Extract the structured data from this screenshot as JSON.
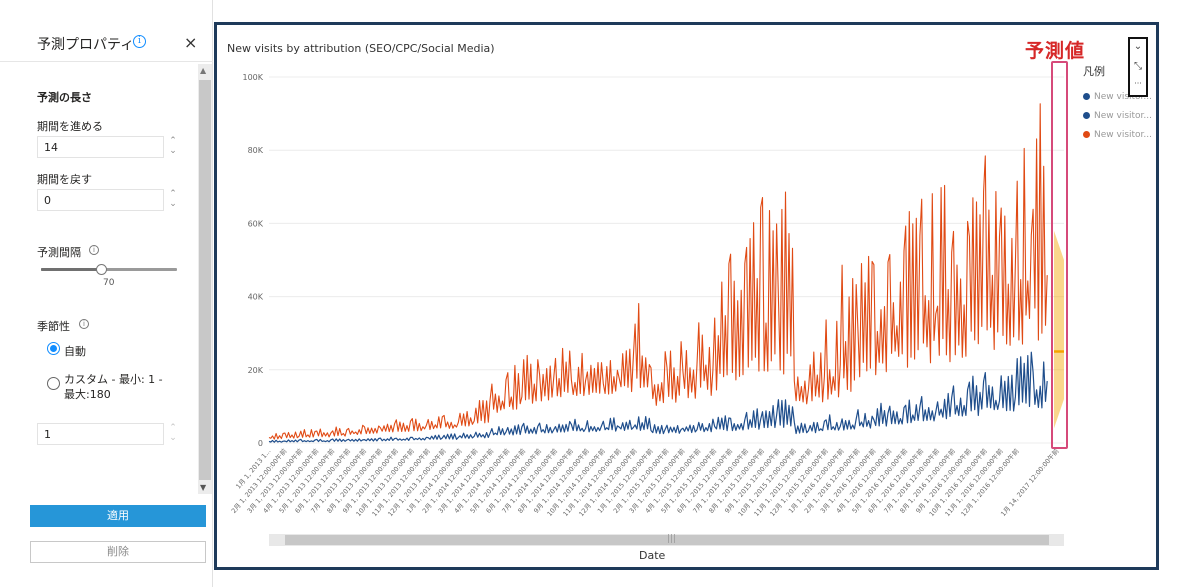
{
  "left_pane": {
    "title": "予測プロパティ",
    "info_icon": "info-icon",
    "close_icon": "close-icon",
    "close_glyph": "×",
    "section_forecast_length": "予測の長さ",
    "forward_label": "期間を進める",
    "forward_value": "14",
    "backward_label": "期間を戻す",
    "backward_value": "0",
    "confidence_label": "予測間隔",
    "confidence_value": "70",
    "confidence_fraction": 0.37,
    "seasonality_label": "季節性",
    "radio_auto": "自動",
    "radio_custom": "カスタム - 最小: 1 - 最大:180",
    "seasonality_value": "1",
    "apply_button": "適用",
    "delete_button": "削除"
  },
  "chart_panel": {
    "forecast_annotation": "予測値",
    "legend_title": "凡例",
    "legend": [
      {
        "label": "New visitor...",
        "color": "#1f4e8c"
      },
      {
        "label": "New visitor...",
        "color": "#1f4e8c"
      },
      {
        "label": "New visitor...",
        "color": "#e04a14"
      }
    ],
    "icons": [
      "chevron-down-icon",
      "collapse-icon",
      "more-icon"
    ],
    "icon_glyphs": [
      "⌄",
      "⤡",
      "···"
    ],
    "scroll_grip": "|||"
  },
  "chart_data": {
    "type": "line",
    "title": "New visits by attribution (SEO/CPC/Social Media)",
    "xlabel": "Date",
    "ylabel": "",
    "ylim": [
      0,
      100000
    ],
    "yticks": [
      "0",
      "20K",
      "40K",
      "60K",
      "80K",
      "100K"
    ],
    "x_tick_labels": [
      "1月 1, 2013 1...",
      "2月 1, 2013 12:00:00午前",
      "3月 1, 2013 12:00:00午前",
      "4月 1, 2013 12:00:00午前",
      "5月 1, 2013 12:00:00午前",
      "6月 1, 2013 12:00:00午前",
      "7月 1, 2013 12:00:00午前",
      "8月 1, 2013 12:00:00午前",
      "9月 1, 2013 12:00:00午前",
      "10月 1, 2013 12:00:00午前",
      "11月 1, 2013 12:00:00午前",
      "12月 1, 2013 12:00:00午前",
      "1月 1, 2014 12:00:00午前",
      "2月 1, 2014 12:00:00午前",
      "3月 1, 2014 12:00:00午前",
      "4月 1, 2014 12:00:00午前",
      "5月 1, 2014 12:00:00午前",
      "6月 1, 2014 12:00:00午前",
      "7月 1, 2014 12:00:00午前",
      "8月 1, 2014 12:00:00午前",
      "9月 1, 2014 12:00:00午前",
      "10月 1, 2014 12:00:00午前",
      "11月 1, 2014 12:00:00午前",
      "12月 1, 2014 12:00:00午前",
      "1月 1, 2015 12:00:00午前",
      "2月 1, 2015 12:00:00午前",
      "3月 1, 2015 12:00:00午前",
      "4月 1, 2015 12:00:00午前",
      "5月 1, 2015 12:00:00午前",
      "6月 1, 2015 12:00:00午前",
      "7月 1, 2015 12:00:00午前",
      "8月 1, 2015 12:00:00午前",
      "9月 1, 2015 12:00:00午前",
      "10月 1, 2015 12:00:00午前",
      "11月 1, 2015 12:00:00午前",
      "12月 1, 2015 12:00:00午前",
      "1月 1, 2016 12:00:00午前",
      "2月 1, 2016 12:00:00午前",
      "3月 1, 2016 12:00:00午前",
      "4月 1, 2016 12:00:00午前",
      "5月 1, 2016 12:00:00午前",
      "6月 1, 2016 12:00:00午前",
      "7月 1, 2016 12:00:00午前",
      "8月 1, 2016 12:00:00午前",
      "9月 1, 2016 12:00:00午前",
      "10月 1, 2016 12:00:00午前",
      "11月 1, 2016 12:00:00午前",
      "12月 1, 2016 12:00:00午前",
      "1月 14, 2017 12:00:00午前"
    ],
    "series": [
      {
        "color": "#e04a14",
        "style": "daily-spiky",
        "monthly_low": [
          1000,
          1200,
          1400,
          1600,
          1800,
          2200,
          2500,
          2800,
          3000,
          3300,
          3600,
          4000,
          4500,
          5500,
          8000,
          9000,
          10000,
          11000,
          12000,
          12000,
          13000,
          13000,
          14000,
          15000,
          10000,
          11000,
          12000,
          13000,
          14000,
          15000,
          16000,
          17000,
          18000,
          10000,
          11000,
          12000,
          14000,
          16000,
          18000,
          19000,
          20000,
          21000,
          22000,
          23000,
          24000,
          25000,
          26000,
          27000,
          28000
        ],
        "monthly_high": [
          3000,
          3500,
          3800,
          4000,
          4500,
          5000,
          5500,
          6000,
          6500,
          7000,
          7500,
          7800,
          9000,
          12000,
          20000,
          22000,
          24000,
          25000,
          26000,
          25000,
          24000,
          25000,
          26000,
          40000,
          25000,
          28000,
          33000,
          40000,
          50000,
          58000,
          66000,
          68000,
          72000,
          22000,
          26000,
          35000,
          50000,
          58000,
          62000,
          64000,
          66000,
          70000,
          72000,
          75000,
          78000,
          80000,
          84000,
          88000,
          93000
        ]
      },
      {
        "color": "#1f4e8c",
        "style": "daily-spiky",
        "monthly_low": [
          200,
          250,
          300,
          350,
          400,
          450,
          500,
          600,
          700,
          800,
          900,
          1000,
          1200,
          1400,
          2000,
          2200,
          2500,
          2600,
          2800,
          3000,
          3000,
          3200,
          3300,
          3400,
          2500,
          2600,
          2800,
          3000,
          3200,
          3400,
          3600,
          3800,
          4000,
          2500,
          2800,
          3000,
          3500,
          4000,
          4500,
          5000,
          5500,
          6000,
          6500,
          7000,
          7500,
          8000,
          8500,
          9000,
          9500
        ],
        "monthly_high": [
          800,
          900,
          1000,
          1100,
          1200,
          1300,
          1500,
          1700,
          1900,
          2100,
          2300,
          2500,
          2800,
          3200,
          4500,
          5000,
          5500,
          6000,
          6000,
          6500,
          6500,
          7000,
          7000,
          8000,
          5000,
          5500,
          6000,
          7000,
          8000,
          9000,
          10000,
          11000,
          12000,
          6000,
          7000,
          8000,
          9000,
          10000,
          11000,
          11500,
          12000,
          13000,
          14000,
          16000,
          20000,
          22000,
          24000,
          26000,
          28000
        ]
      },
      {
        "color": "#f5a300",
        "style": "forecast-band",
        "x_range": [
          "1月 1, 2017",
          "1月 14, 2017"
        ],
        "upper": [
          58000,
          56000,
          54000,
          52000,
          50000
        ],
        "lower": [
          4000,
          6000,
          8000,
          10000,
          12000
        ]
      }
    ]
  }
}
